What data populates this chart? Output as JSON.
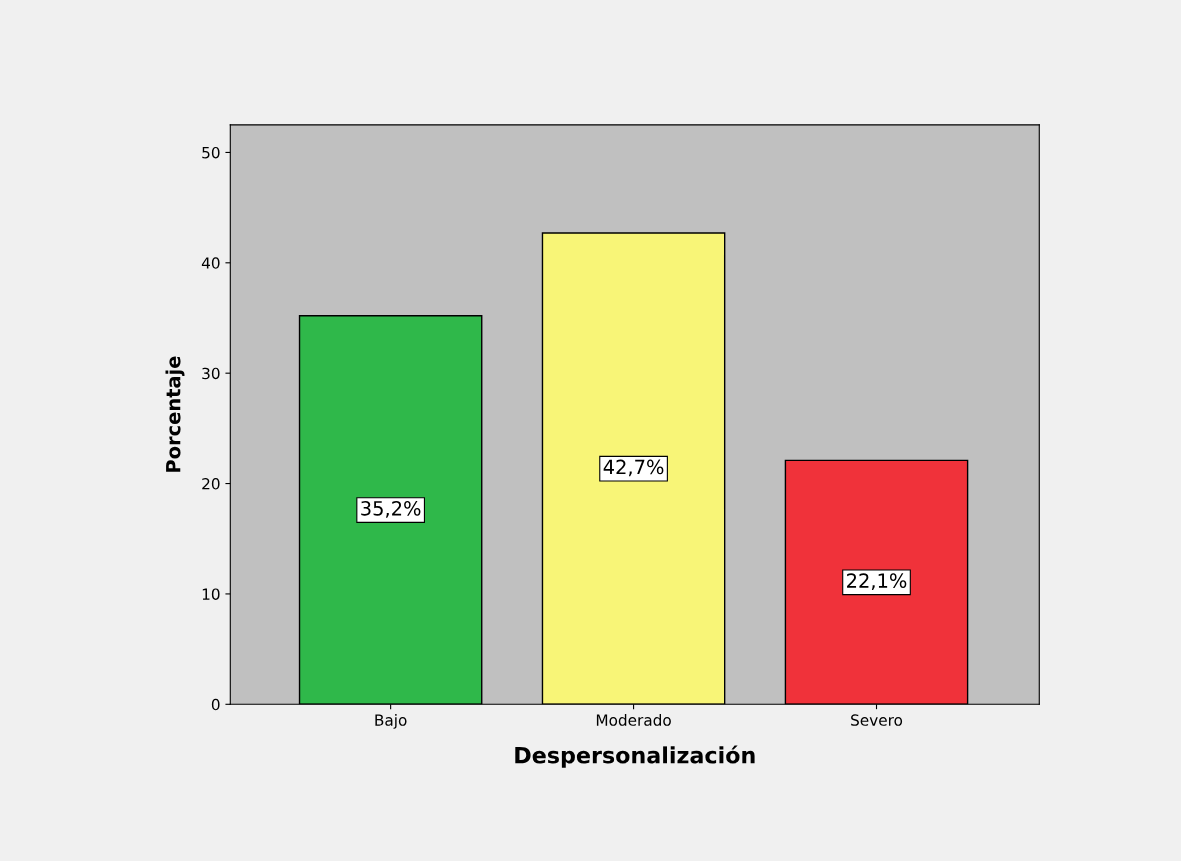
{
  "chart_data": {
    "type": "bar",
    "xlabel": "Despersonalización",
    "ylabel": "Porcentaje",
    "categories": [
      "Bajo",
      "Moderado",
      "Severo"
    ],
    "values": [
      35.2,
      42.7,
      22.1
    ],
    "colors": [
      "#2fb84a",
      "#f8f577",
      "#f0323a"
    ],
    "value_labels": [
      "35,2%",
      "42,7%",
      "22,1%"
    ],
    "ylim": [
      0,
      52.5
    ],
    "yticks": [
      0,
      10,
      20,
      30,
      40,
      50
    ],
    "grid": false,
    "legend": false
  }
}
